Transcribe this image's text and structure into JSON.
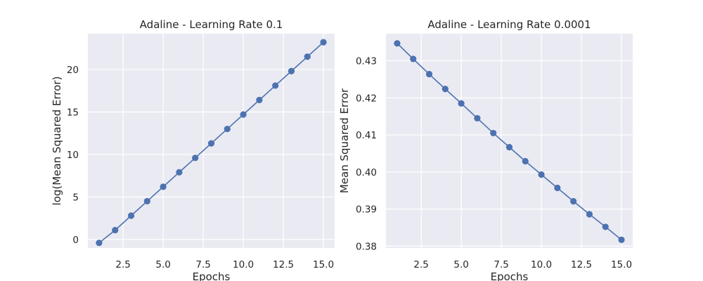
{
  "colors": {
    "series": "#4c72b0",
    "plot_background": "#eaeaf2",
    "grid": "#ffffff"
  },
  "chart_data": [
    {
      "type": "line",
      "title": "Adaline - Learning Rate 0.1",
      "xlabel": "Epochs",
      "ylabel": "log(Mean Squared Error)",
      "xlim": [
        0.3,
        15.7
      ],
      "ylim": [
        -1.0,
        24.2
      ],
      "xticks": [
        2.5,
        5.0,
        7.5,
        10.0,
        12.5,
        15.0
      ],
      "xtick_labels": [
        "2.5",
        "5.0",
        "7.5",
        "10.0",
        "12.5",
        "15.0"
      ],
      "yticks": [
        0,
        5,
        10,
        15,
        20
      ],
      "ytick_labels": [
        "0",
        "5",
        "10",
        "15",
        "20"
      ],
      "grid": true,
      "marker": "circle",
      "x": [
        1,
        2,
        3,
        4,
        5,
        6,
        7,
        8,
        9,
        10,
        11,
        12,
        13,
        14,
        15
      ],
      "y": [
        -0.4,
        1.1,
        2.8,
        4.5,
        6.2,
        7.9,
        9.6,
        11.3,
        13.0,
        14.7,
        16.4,
        18.1,
        19.8,
        21.5,
        23.2
      ]
    },
    {
      "type": "line",
      "title": "Adaline - Learning Rate 0.0001",
      "xlabel": "Epochs",
      "ylabel": "Mean Squared Error",
      "xlim": [
        0.3,
        15.7
      ],
      "ylim": [
        0.3795,
        0.4373
      ],
      "xticks": [
        2.5,
        5.0,
        7.5,
        10.0,
        12.5,
        15.0
      ],
      "xtick_labels": [
        "2.5",
        "5.0",
        "7.5",
        "10.0",
        "12.5",
        "15.0"
      ],
      "yticks": [
        0.38,
        0.39,
        0.4,
        0.41,
        0.42,
        0.43
      ],
      "ytick_labels": [
        "0.38",
        "0.39",
        "0.40",
        "0.41",
        "0.42",
        "0.43"
      ],
      "grid": true,
      "marker": "circle",
      "x": [
        1,
        2,
        3,
        4,
        5,
        6,
        7,
        8,
        9,
        10,
        11,
        12,
        13,
        14,
        15
      ],
      "y": [
        0.4347,
        0.4305,
        0.4264,
        0.4224,
        0.4185,
        0.4145,
        0.4105,
        0.4067,
        0.4029,
        0.3993,
        0.3957,
        0.3921,
        0.3886,
        0.3852,
        0.3817
      ]
    }
  ]
}
